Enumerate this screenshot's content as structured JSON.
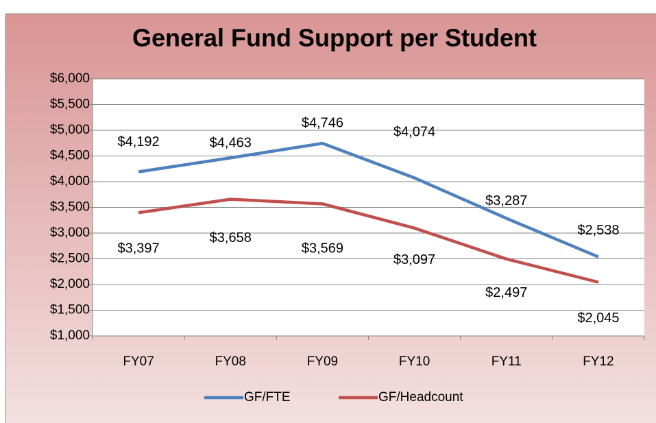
{
  "chart_data": {
    "type": "line",
    "title": "General Fund Support per Student",
    "categories": [
      "FY07",
      "FY08",
      "FY09",
      "FY10",
      "FY11",
      "FY12"
    ],
    "series": [
      {
        "name": "GF/FTE",
        "color": "#4f81bd",
        "values": [
          4192,
          4463,
          4746,
          4074,
          3287,
          2538
        ],
        "value_labels": [
          "$4,192",
          "$4,463",
          "$4,746",
          "$4,074",
          "$3,287",
          "$2,538"
        ]
      },
      {
        "name": "GF/Headcount",
        "color": "#c0504d",
        "values": [
          3397,
          3658,
          3569,
          3097,
          2497,
          2045
        ],
        "value_labels": [
          "$3,397",
          "$3,658",
          "$3,569",
          "$3,097",
          "$2,497",
          "$2,045"
        ]
      }
    ],
    "ylim": [
      1000,
      6000
    ],
    "yticks": [
      {
        "value": 1000,
        "label": "$1,000"
      },
      {
        "value": 1500,
        "label": "$1,500"
      },
      {
        "value": 2000,
        "label": "$2,000"
      },
      {
        "value": 2500,
        "label": "$2,500"
      },
      {
        "value": 3000,
        "label": "$3,000"
      },
      {
        "value": 3500,
        "label": "$3,500"
      },
      {
        "value": 4000,
        "label": "$4,000"
      },
      {
        "value": 4500,
        "label": "$4,500"
      },
      {
        "value": 5000,
        "label": "$5,000"
      },
      {
        "value": 5500,
        "label": "$5,500"
      },
      {
        "value": 6000,
        "label": "$6,000"
      }
    ],
    "grid": true,
    "legend": "bottom"
  }
}
